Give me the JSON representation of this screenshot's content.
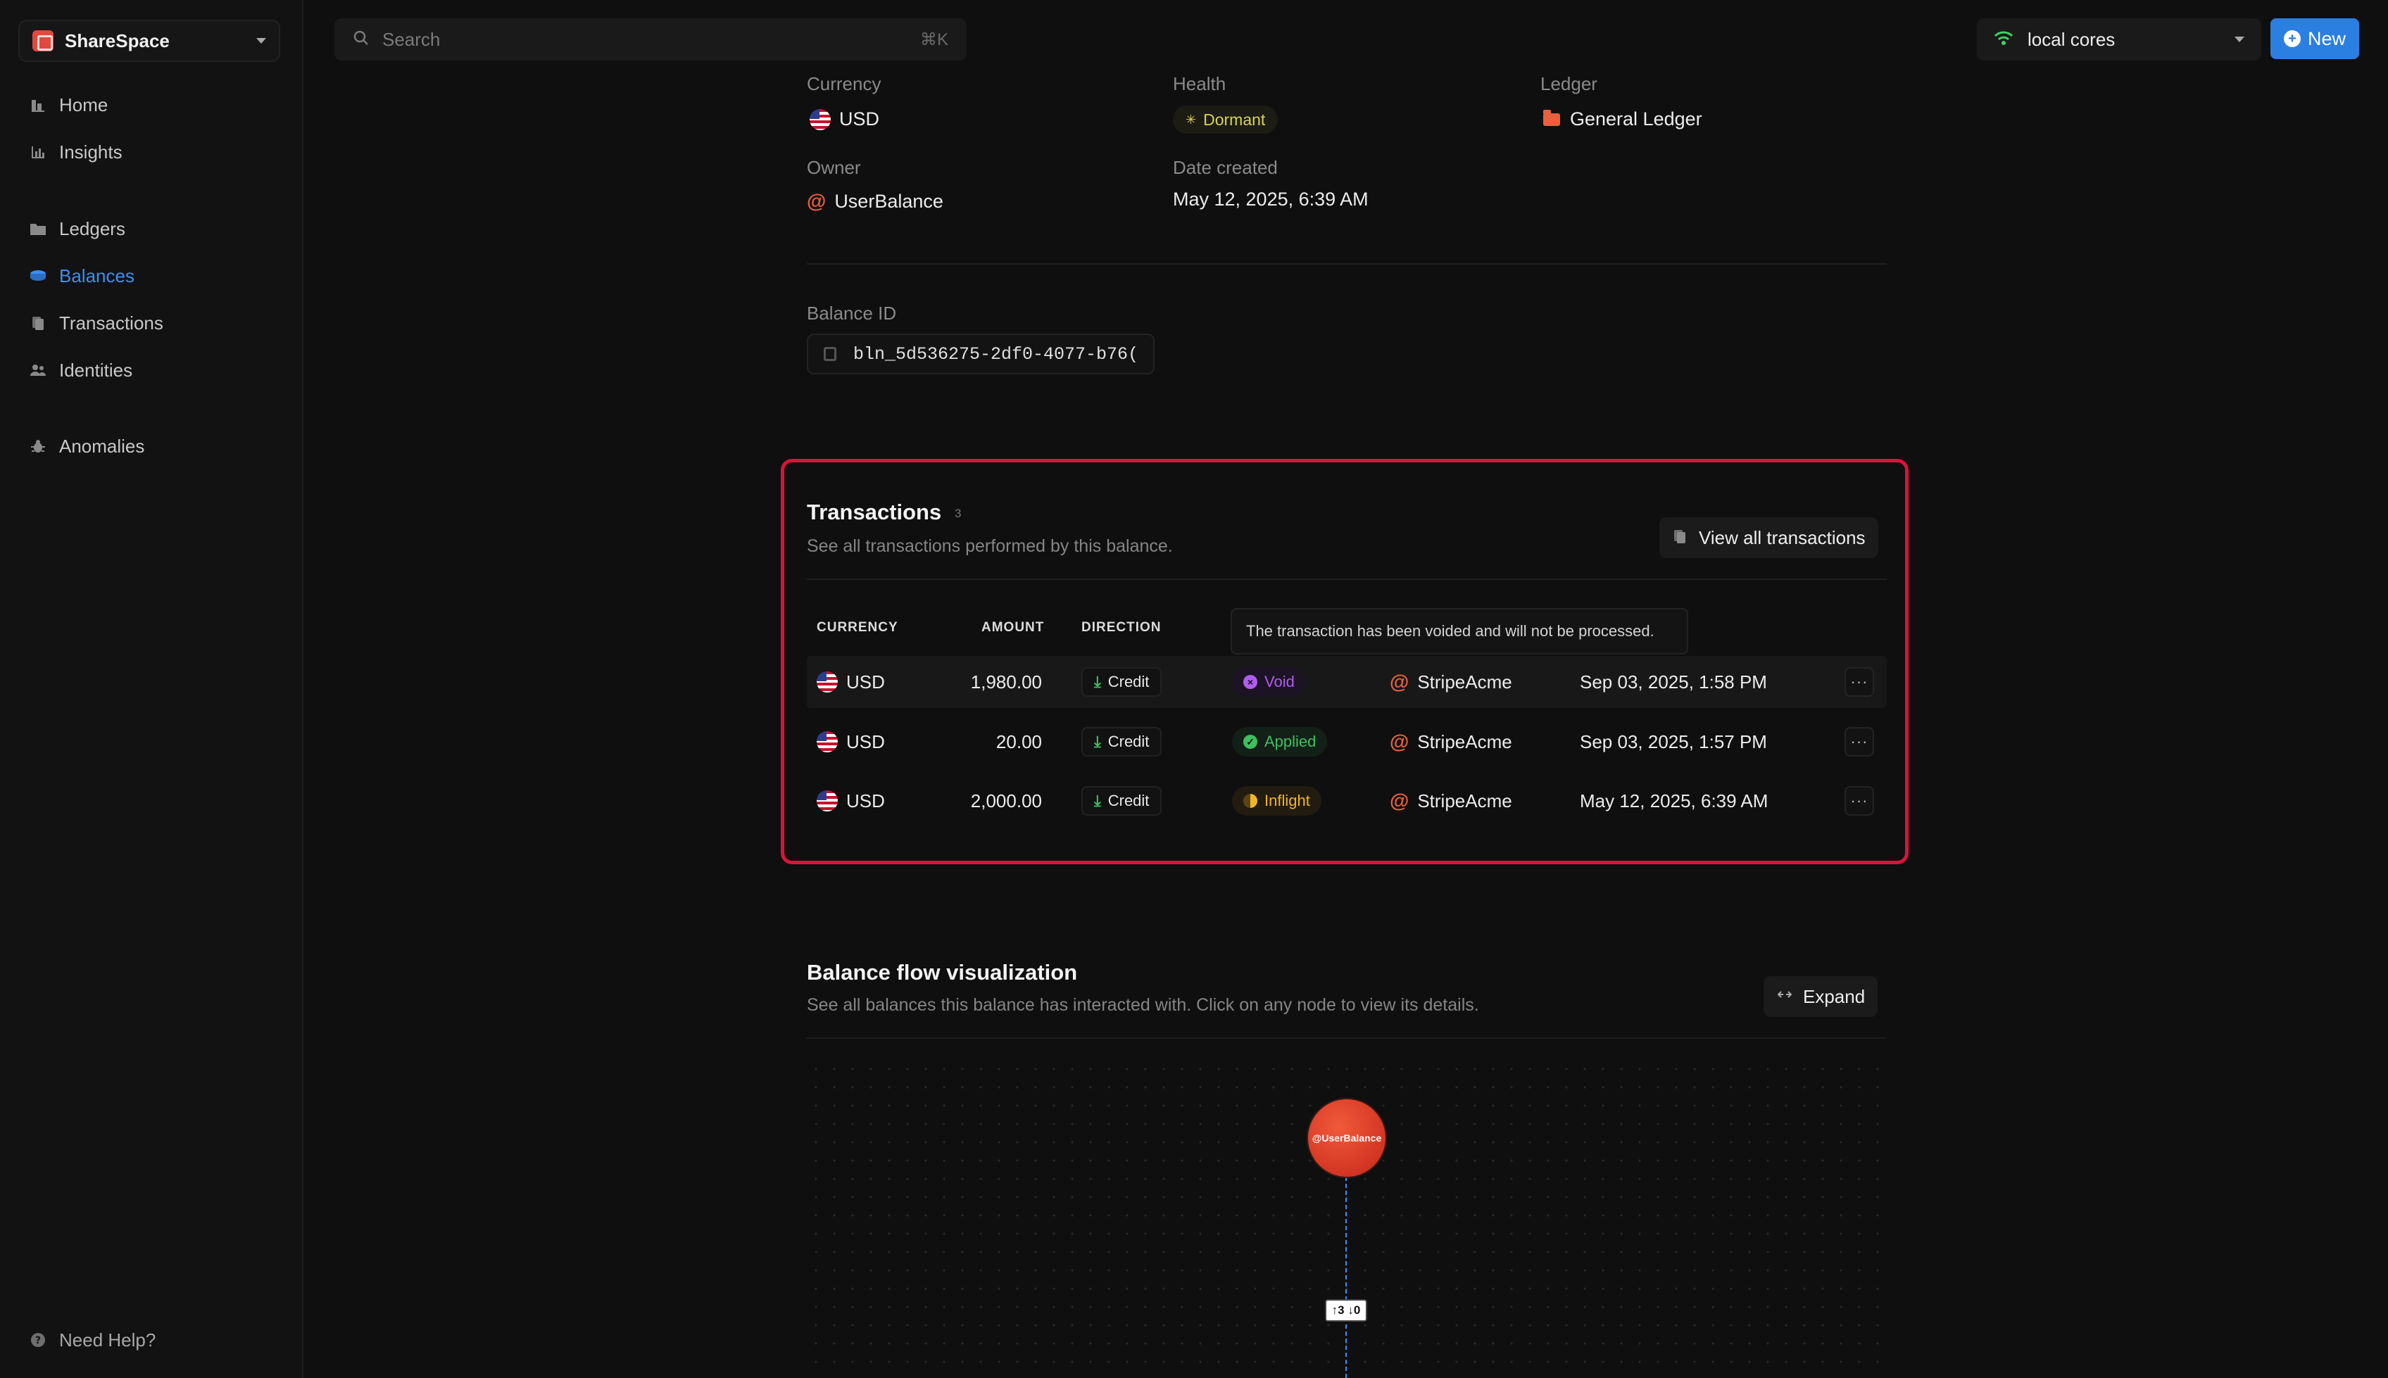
{
  "app": {
    "workspace_name": "ShareSpace"
  },
  "sidebar": {
    "items": [
      {
        "label": "Home",
        "icon": "home-icon"
      },
      {
        "label": "Insights",
        "icon": "chart-icon"
      },
      {
        "label": "Ledgers",
        "icon": "folder-icon"
      },
      {
        "label": "Balances",
        "icon": "coin-icon",
        "active": true
      },
      {
        "label": "Transactions",
        "icon": "transactions-icon"
      },
      {
        "label": "Identities",
        "icon": "users-icon"
      },
      {
        "label": "Anomalies",
        "icon": "bug-icon"
      }
    ],
    "help_label": "Need Help?"
  },
  "topbar": {
    "search_placeholder": "Search",
    "search_shortcut": "⌘K",
    "environment": "local cores",
    "new_label": "New"
  },
  "details": {
    "currency_label": "Currency",
    "currency_value": "USD",
    "health_label": "Health",
    "health_value": "Dormant",
    "ledger_label": "Ledger",
    "ledger_value": "General Ledger",
    "owner_label": "Owner",
    "owner_value": "UserBalance",
    "date_label": "Date created",
    "date_value": "May 12, 2025, 6:39 AM",
    "balance_id_label": "Balance ID",
    "balance_id_value": "bln_5d536275-2df0-4077-b76("
  },
  "transactions": {
    "title": "Transactions",
    "count": "3",
    "subtitle": "See all transactions performed by this balance.",
    "view_all_label": "View all transactions",
    "columns": {
      "currency": "CURRENCY",
      "amount": "AMOUNT",
      "direction": "DIRECTION"
    },
    "tooltip": "The transaction has been voided and will not be processed.",
    "rows": [
      {
        "currency": "USD",
        "amount": "1,980.00",
        "direction": "Credit",
        "status": "Void",
        "party": "StripeAcme",
        "date": "Sep 03, 2025, 1:58 PM"
      },
      {
        "currency": "USD",
        "amount": "20.00",
        "direction": "Credit",
        "status": "Applied",
        "party": "StripeAcme",
        "date": "Sep 03, 2025, 1:57 PM"
      },
      {
        "currency": "USD",
        "amount": "2,000.00",
        "direction": "Credit",
        "status": "Inflight",
        "party": "StripeAcme",
        "date": "May 12, 2025, 6:39 AM"
      }
    ]
  },
  "flow": {
    "title": "Balance flow visualization",
    "subtitle": "See all balances this balance has interacted with. Click on any node to view its details.",
    "expand_label": "Expand",
    "node_label": "@UserBalance",
    "edge_label": "↑3 ↓0"
  },
  "colors": {
    "accent": "#2b7fe0",
    "highlight": "#d8143a",
    "void": "#b15cf0",
    "applied": "#3fbf5f",
    "inflight": "#f0b429",
    "dormant": "#d8d158"
  }
}
